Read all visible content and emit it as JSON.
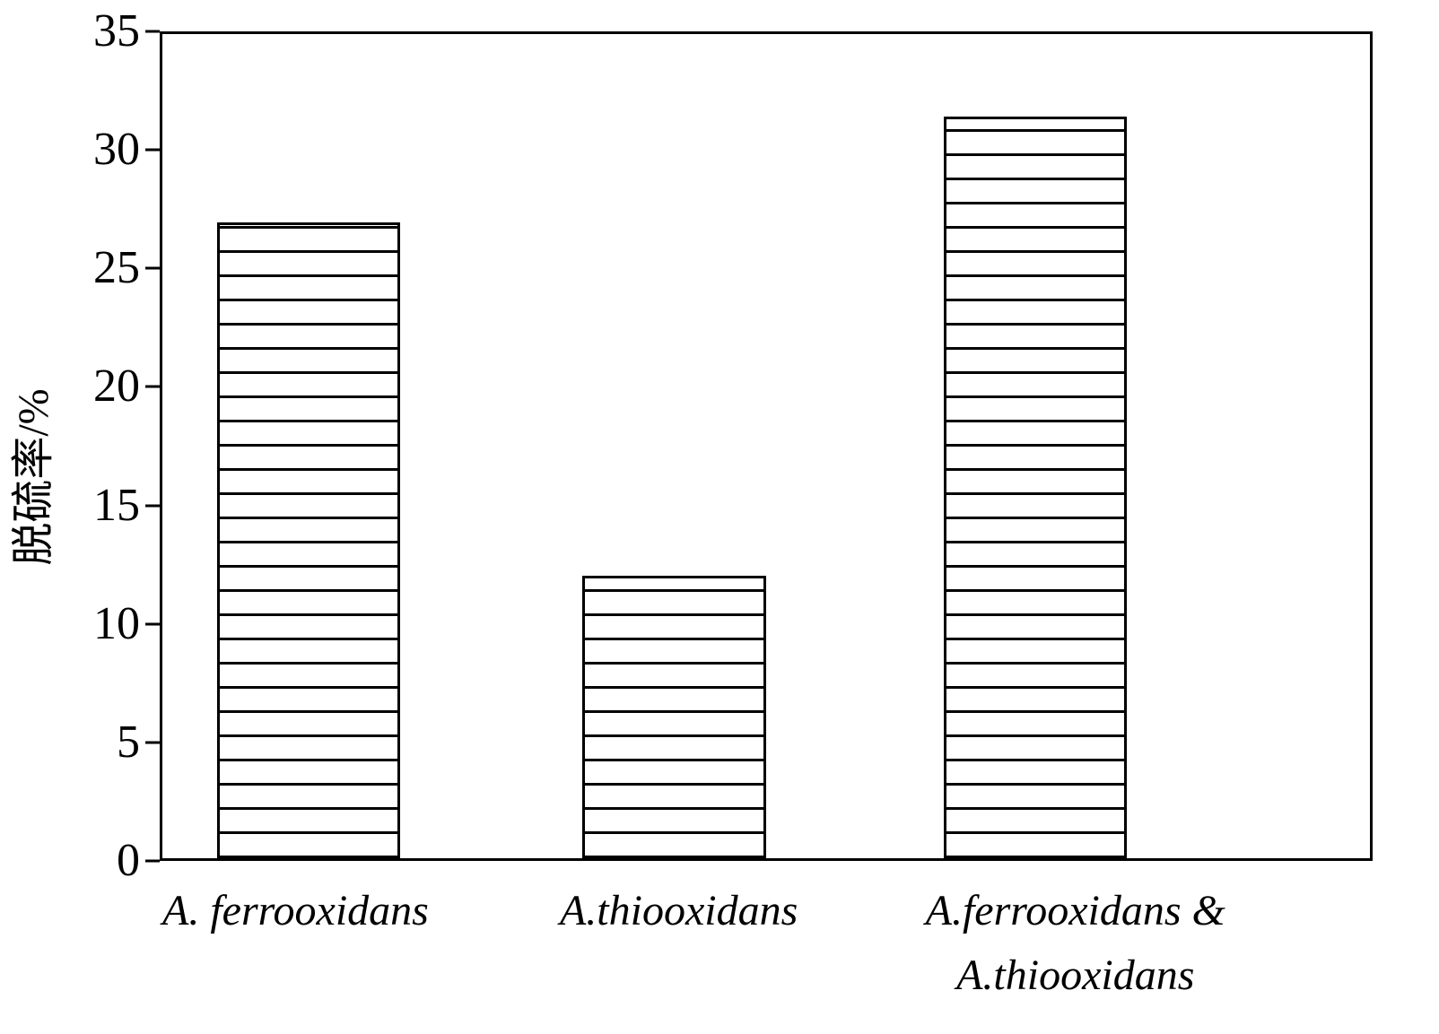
{
  "chart_data": {
    "type": "bar",
    "title": "",
    "xlabel": "",
    "ylabel": "脱硫率/%",
    "ylim": [
      0,
      35
    ],
    "yticks": [
      0,
      5,
      10,
      15,
      20,
      25,
      30,
      35
    ],
    "categories": [
      {
        "lines": [
          "A. ferrooxidans"
        ]
      },
      {
        "lines": [
          "A.thiooxidans"
        ]
      },
      {
        "lines": [
          "A.ferrooxidans &",
          "A.thiooxidans"
        ]
      }
    ],
    "values": [
      27,
      12,
      31.5
    ],
    "grid": false,
    "legend": "none",
    "bar_style": "horizontal-hatch",
    "colors": {
      "bar_fill": "#ffffff",
      "bar_border": "#000000",
      "hatch": "#000000",
      "axis": "#000000",
      "background": "#ffffff"
    }
  }
}
